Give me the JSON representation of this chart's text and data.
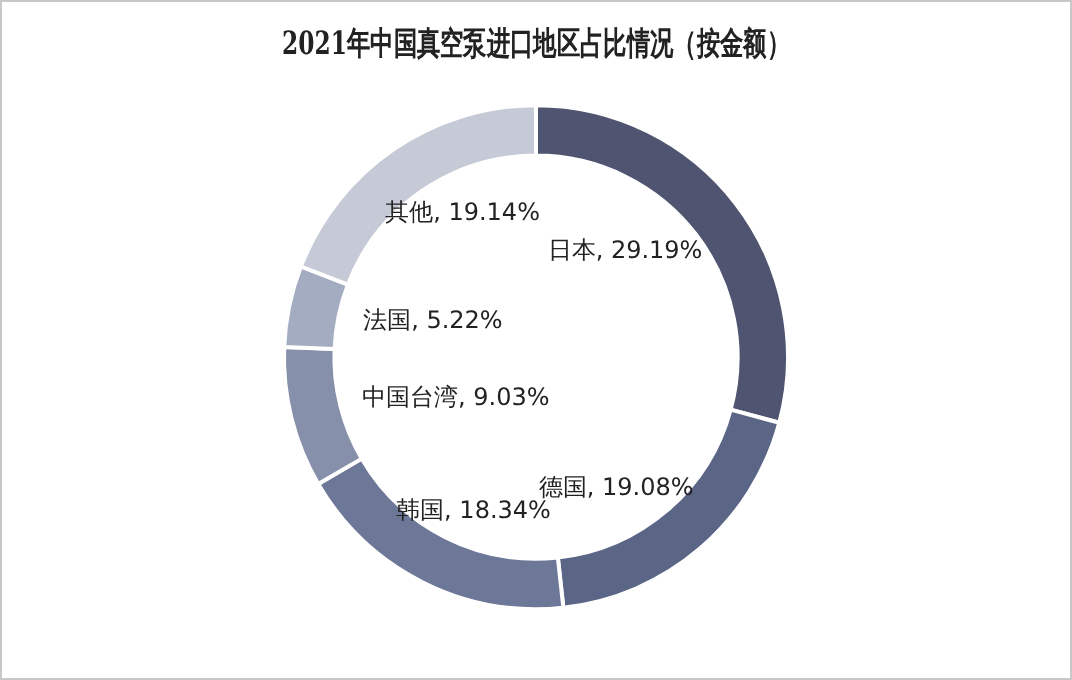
{
  "chart_data": {
    "type": "donut",
    "title": "2021年中国真空泵进口地区占比情况（按金额）",
    "categories": [
      "日本",
      "德国",
      "韩国",
      "中国台湾",
      "法国",
      "其他"
    ],
    "values": [
      29.19,
      19.08,
      18.34,
      9.03,
      5.22,
      19.14
    ],
    "colors": [
      "#4f5470",
      "#5b6686",
      "#6d7797",
      "#8690ab",
      "#a4acc1",
      "#c6cad7"
    ],
    "value_labels": [
      ", 29.19%",
      ", 19.08%",
      ", 18.34%",
      ", 9.03%",
      ", 5.22%",
      ", 19.14%"
    ],
    "legend": false
  }
}
